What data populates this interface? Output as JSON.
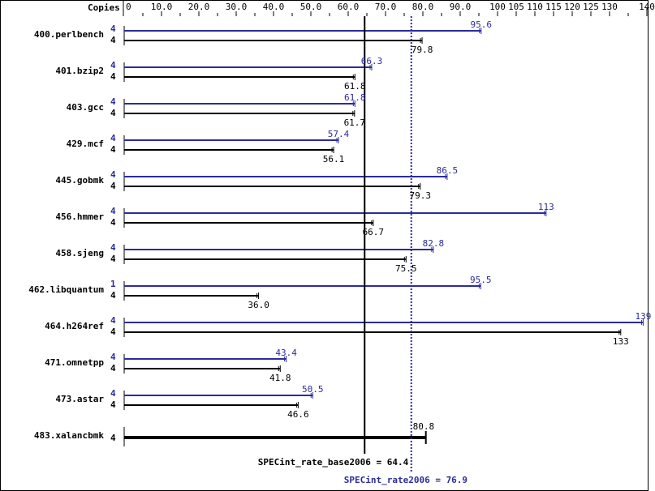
{
  "chart_data": {
    "type": "bar",
    "title": "",
    "xlabel": "",
    "ylabel": "Copies",
    "orientation": "horizontal",
    "axis": {
      "header_label": "Copies",
      "ticks": [
        "0",
        "10.0",
        "20.0",
        "30.0",
        "40.0",
        "50.0",
        "60.0",
        "70.0",
        "80.0",
        "90.0",
        "100",
        "105",
        "110",
        "115",
        "120",
        "125",
        "130",
        "140"
      ],
      "tick_values": [
        0,
        10,
        20,
        30,
        40,
        50,
        60,
        70,
        80,
        90,
        100,
        105,
        110,
        115,
        120,
        125,
        130,
        140
      ],
      "xlim": [
        0,
        140
      ]
    },
    "categories": [
      "400.perlbench",
      "401.bzip2",
      "403.gcc",
      "429.mcf",
      "445.gobmk",
      "456.hmmer",
      "458.sjeng",
      "462.libquantum",
      "464.h264ref",
      "471.omnetpp",
      "473.astar",
      "483.xalancbmk"
    ],
    "series": [
      {
        "name": "SPECint_rate2006 (peak)",
        "color": "#2b2b9e",
        "copies": [
          "4",
          "4",
          "4",
          "4",
          "4",
          "4",
          "4",
          "1",
          "4",
          "4",
          "4",
          null
        ],
        "values": [
          95.6,
          66.3,
          61.8,
          57.4,
          86.5,
          113,
          82.8,
          95.5,
          139,
          43.4,
          50.5,
          null
        ],
        "labels": [
          "95.6",
          "66.3",
          "61.8",
          "57.4",
          "86.5",
          "113",
          "82.8",
          "95.5",
          "139",
          "43.4",
          "50.5",
          null
        ]
      },
      {
        "name": "SPECint_rate_base2006 (base)",
        "color": "#000000",
        "copies": [
          "4",
          "4",
          "4",
          "4",
          "4",
          "4",
          "4",
          "4",
          "4",
          "4",
          "4",
          "4"
        ],
        "values": [
          79.8,
          61.8,
          61.7,
          56.1,
          79.3,
          66.7,
          75.5,
          36.0,
          133,
          41.8,
          46.6,
          80.8
        ],
        "labels": [
          "79.8",
          "61.8",
          "61.7",
          "56.1",
          "79.3",
          "66.7",
          "75.5",
          "36.0",
          "133",
          "41.8",
          "46.6",
          "80.8"
        ]
      }
    ],
    "reference_lines": [
      {
        "name": "SPECint_rate_base2006",
        "value": 64.4,
        "label": "SPECint_rate_base2006 = 64.4",
        "style": "solid",
        "color": "#000000"
      },
      {
        "name": "SPECint_rate2006",
        "value": 76.9,
        "label": "SPECint_rate2006 = 76.9",
        "style": "dotted",
        "color": "#2b2b9e"
      }
    ],
    "legend_position": "bottom",
    "grid": false
  },
  "colors": {
    "peak": "#2b2b9e",
    "base": "#000000"
  }
}
